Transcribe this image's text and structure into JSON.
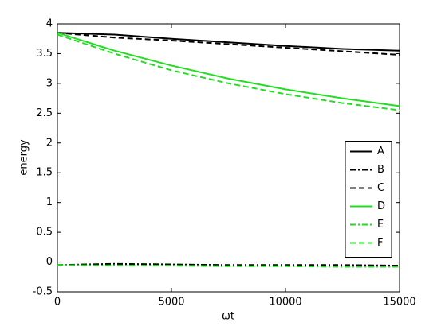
{
  "chart_data": {
    "type": "line",
    "xlabel": "ωt",
    "ylabel": "energy",
    "x": [
      0,
      2500,
      5000,
      7500,
      10000,
      12500,
      15000
    ],
    "series": [
      {
        "name": "A",
        "color": "#000000",
        "linestyle": "solid",
        "values": [
          3.85,
          3.82,
          3.75,
          3.69,
          3.63,
          3.58,
          3.55
        ]
      },
      {
        "name": "B",
        "color": "#000000",
        "linestyle": "dashdot",
        "values": [
          -0.05,
          -0.03,
          -0.04,
          -0.05,
          -0.05,
          -0.05,
          -0.06
        ]
      },
      {
        "name": "C",
        "color": "#000000",
        "linestyle": "dashed",
        "values": [
          3.85,
          3.77,
          3.72,
          3.66,
          3.6,
          3.54,
          3.48
        ]
      },
      {
        "name": "D",
        "color": "#22dd22",
        "linestyle": "solid",
        "values": [
          3.85,
          3.55,
          3.3,
          3.08,
          2.9,
          2.75,
          2.62
        ]
      },
      {
        "name": "E",
        "color": "#22dd22",
        "linestyle": "dashdot",
        "values": [
          -0.05,
          -0.06,
          -0.06,
          -0.07,
          -0.07,
          -0.08,
          -0.08
        ]
      },
      {
        "name": "F",
        "color": "#22dd22",
        "linestyle": "dashed",
        "values": [
          3.82,
          3.5,
          3.22,
          3.0,
          2.82,
          2.67,
          2.55
        ]
      }
    ],
    "xlim": [
      0,
      15000
    ],
    "xticks": [
      0,
      5000,
      10000,
      15000
    ],
    "ylim": [
      -0.5,
      4
    ],
    "yticks": [
      -0.5,
      0,
      0.5,
      1,
      1.5,
      2,
      2.5,
      3,
      3.5,
      4
    ],
    "grid": false,
    "legend": "right"
  }
}
